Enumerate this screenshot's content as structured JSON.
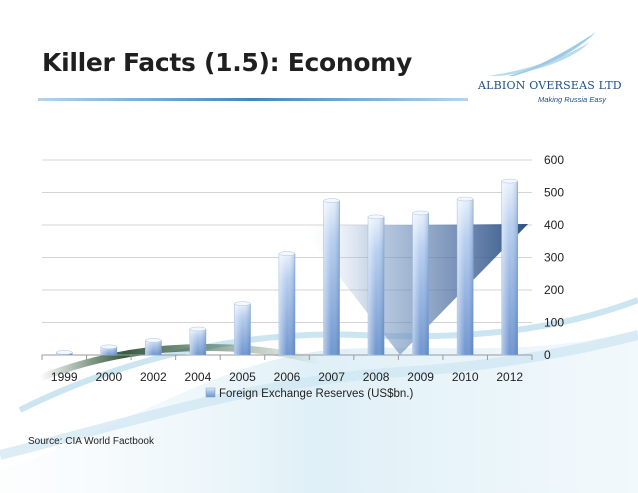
{
  "slide": {
    "title": "Killer Facts (1.5): Economy",
    "source": "Source: CIA World Factbook"
  },
  "logo": {
    "name": "ALBION OVERSEAS LTD",
    "tagline": "Making Russia Easy"
  },
  "colors": {
    "bar_light": "#d9e6f7",
    "bar_dark": "#6f95cf",
    "accent": "#4c7ab8",
    "swirl": "#bfe0ef"
  },
  "chart_data": {
    "type": "bar",
    "categories": [
      "1999",
      "2000",
      "2002",
      "2004",
      "2005",
      "2006",
      "2007",
      "2008",
      "2009",
      "2010",
      "2012"
    ],
    "series": [
      {
        "name": "Foreign Exchange Reserves (US$bn.)",
        "values": [
          8,
          25,
          45,
          80,
          158,
          312,
          475,
          425,
          437,
          480,
          535
        ]
      }
    ],
    "ylim": [
      0,
      600
    ],
    "yticks": [
      "0",
      "100",
      "200",
      "300",
      "400",
      "500",
      "600"
    ],
    "y_axis_side": "right",
    "grid": true,
    "legend": "bottom",
    "xlabel": "",
    "ylabel": "",
    "title": ""
  }
}
